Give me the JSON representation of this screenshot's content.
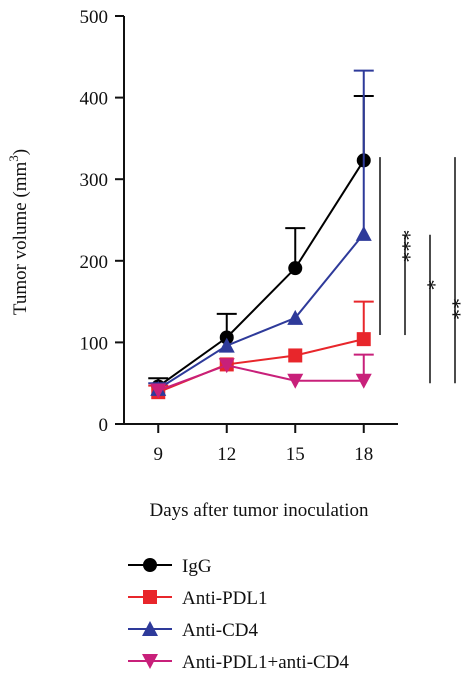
{
  "chart_data": {
    "type": "line",
    "title": "",
    "xlabel": "Days after tumor inoculation",
    "ylabel": "Tumor volume (mm",
    "ylabel_superscript": "3",
    "ylabel_close": ")",
    "x": [
      9,
      12,
      15,
      18
    ],
    "x_ticks": [
      "9",
      "12",
      "15",
      "18"
    ],
    "y_ticks": [
      "0",
      "100",
      "200",
      "300",
      "400",
      "500"
    ],
    "xlim": [
      7.5,
      19.5
    ],
    "ylim": [
      0,
      500
    ],
    "legend_position": "bottom",
    "series": [
      {
        "name": "IgG",
        "color": "#000000",
        "marker": "circle",
        "values": [
          46,
          106,
          191,
          323
        ],
        "errors": [
          10,
          29,
          49,
          79
        ]
      },
      {
        "name": "Anti-PDL1",
        "color": "#e8262b",
        "marker": "square",
        "values": [
          39,
          73,
          84,
          104
        ],
        "errors": [
          8,
          0,
          0,
          46
        ]
      },
      {
        "name": "Anti-CD4",
        "color": "#2e3a9a",
        "marker": "triangle-up",
        "values": [
          43,
          96,
          130,
          233
        ],
        "errors": [
          7,
          0,
          0,
          200
        ]
      },
      {
        "name": "Anti-PDL1+anti-CD4",
        "color": "#c8207a",
        "marker": "triangle-down",
        "values": [
          41,
          72,
          53,
          53
        ],
        "errors": [
          0,
          0,
          0,
          32
        ]
      }
    ],
    "significance": [
      {
        "label": "***",
        "y_top": 327,
        "y_bottom": 109
      },
      {
        "label": "*",
        "y_top": 232,
        "y_bottom": 109
      },
      {
        "label": "**",
        "y_top": 232,
        "y_bottom": 50
      },
      {
        "label": "***",
        "y_top": 327,
        "y_bottom": 50
      }
    ]
  }
}
